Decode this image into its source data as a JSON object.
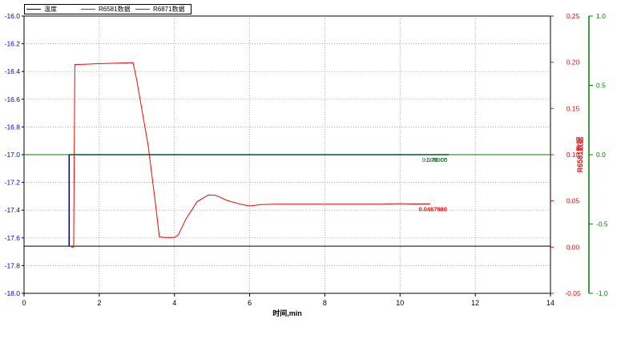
{
  "chart_data": {
    "type": "line",
    "xlabel": "时间,min",
    "x_ticks": [
      0,
      2,
      4,
      6,
      8,
      10,
      12,
      14
    ],
    "xlim": [
      0,
      14
    ],
    "grid": true,
    "legend_position": "top-left",
    "axes": {
      "left": {
        "ticks": [
          "-16.0",
          "-16.2",
          "-16.4",
          "-16.6",
          "-16.8",
          "-17.0",
          "-17.2",
          "-17.4",
          "-17.6",
          "-17.8",
          "-18.0"
        ],
        "ylim": [
          -18.0,
          -16.0
        ],
        "color": "#0000cc",
        "label": ""
      },
      "right1": {
        "ticks": [
          "0.25",
          "0.20",
          "0.15",
          "0.10",
          "0.05",
          "0.00",
          "-0.05"
        ],
        "ylim": [
          -0.05,
          0.25
        ],
        "color": "#ff0000",
        "label": "R6581数据"
      },
      "right2": {
        "ticks": [
          "1.0",
          "0.5",
          "0.0",
          "-0.5",
          "-1.0"
        ],
        "ylim": [
          -1.0,
          1.0
        ],
        "color": "#008000",
        "label": ""
      }
    },
    "series": [
      {
        "name": "温度",
        "color": "#000080",
        "axis": "left",
        "x": [
          1.2,
          1.2,
          11.3
        ],
        "y": [
          -17.66,
          -17.0,
          -17.0
        ],
        "end_label": "-1.7E-05",
        "end_label_color": "#0000cc"
      },
      {
        "name": "R6581数据",
        "color": "#ff0000",
        "axis": "right1",
        "x": [
          1.25,
          1.32,
          1.35,
          1.6,
          2.0,
          2.5,
          2.9,
          3.0,
          3.3,
          3.5,
          3.6,
          3.75,
          4.0,
          4.1,
          4.3,
          4.6,
          4.9,
          5.1,
          5.4,
          5.8,
          6.0,
          6.3,
          6.7,
          7.5,
          8.5,
          9.5,
          10.0,
          10.3,
          10.8
        ],
        "y": [
          0.0,
          0.0,
          0.1975,
          0.1978,
          0.1985,
          0.199,
          0.1995,
          0.18,
          0.11,
          0.045,
          0.011,
          0.0105,
          0.0105,
          0.013,
          0.03,
          0.049,
          0.0565,
          0.056,
          0.0505,
          0.046,
          0.0445,
          0.046,
          0.0465,
          0.0465,
          0.0465,
          0.0465,
          0.047,
          0.0467,
          0.0467
        ],
        "end_label": "0.0467980",
        "end_label_color": "#ff0000"
      },
      {
        "name": "R6871数据",
        "color": "#008000",
        "axis": "right2",
        "x": [
          0,
          14
        ],
        "y": [
          0.0,
          0.0
        ],
        "end_label": "0.000000",
        "end_label_color": "#008000"
      }
    ],
    "baseline_line": {
      "axis": "left",
      "y": -17.66,
      "x": [
        0,
        14
      ],
      "color": "#000000"
    }
  }
}
